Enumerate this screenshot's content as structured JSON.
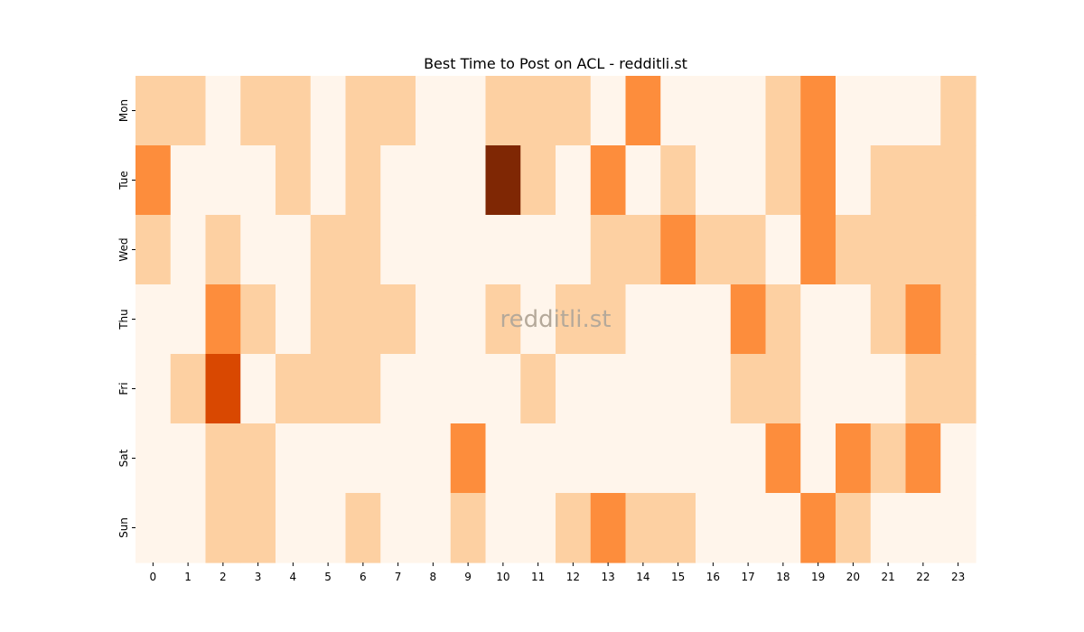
{
  "chart_data": {
    "type": "heatmap",
    "title": "Best Time to Post on ACL - redditli.st",
    "xlabel": "",
    "ylabel": "",
    "x_categories": [
      "0",
      "1",
      "2",
      "3",
      "4",
      "5",
      "6",
      "7",
      "8",
      "9",
      "10",
      "11",
      "12",
      "13",
      "14",
      "15",
      "16",
      "17",
      "18",
      "19",
      "20",
      "21",
      "22",
      "23"
    ],
    "y_categories": [
      "Mon",
      "Tue",
      "Wed",
      "Thu",
      "Fri",
      "Sat",
      "Sun"
    ],
    "values": [
      [
        1,
        1,
        0,
        1,
        1,
        0,
        1,
        1,
        0,
        0,
        1,
        1,
        1,
        0,
        2,
        0,
        0,
        0,
        1,
        2,
        0,
        0,
        0,
        1
      ],
      [
        2,
        0,
        0,
        0,
        1,
        0,
        1,
        0,
        0,
        0,
        4,
        1,
        0,
        2,
        0,
        1,
        0,
        0,
        1,
        2,
        0,
        1,
        1,
        1
      ],
      [
        1,
        0,
        1,
        0,
        0,
        1,
        1,
        0,
        0,
        0,
        0,
        0,
        0,
        1,
        1,
        2,
        1,
        1,
        0,
        2,
        1,
        1,
        1,
        1
      ],
      [
        0,
        0,
        2,
        1,
        0,
        1,
        1,
        1,
        0,
        0,
        1,
        0,
        1,
        1,
        0,
        0,
        0,
        2,
        1,
        0,
        0,
        1,
        2,
        1
      ],
      [
        0,
        1,
        3,
        0,
        1,
        1,
        1,
        0,
        0,
        0,
        0,
        1,
        0,
        0,
        0,
        0,
        0,
        1,
        1,
        0,
        0,
        0,
        1,
        1
      ],
      [
        0,
        0,
        1,
        1,
        0,
        0,
        0,
        0,
        0,
        2,
        0,
        0,
        0,
        0,
        0,
        0,
        0,
        0,
        2,
        0,
        2,
        1,
        2,
        0
      ],
      [
        0,
        0,
        1,
        1,
        0,
        0,
        1,
        0,
        0,
        1,
        0,
        0,
        1,
        2,
        1,
        1,
        0,
        0,
        0,
        2,
        1,
        0,
        0,
        0
      ]
    ],
    "color_scale": {
      "0": "#fff5eb",
      "1": "#fdd0a2",
      "2": "#fd8d3c",
      "3": "#d94801",
      "4": "#7f2704"
    },
    "colorbar": false,
    "watermark": "redditli.st"
  }
}
